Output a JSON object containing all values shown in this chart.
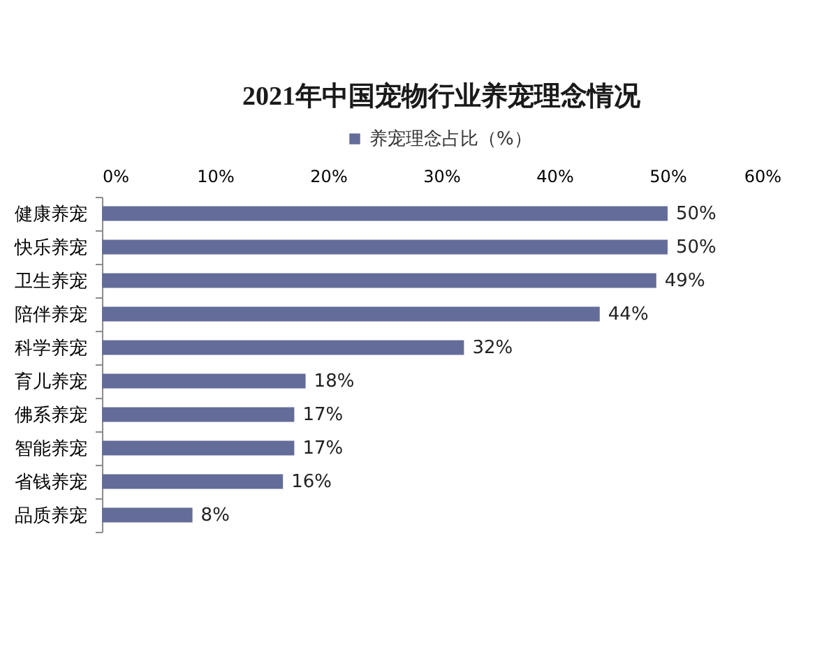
{
  "chart_data": {
    "type": "bar",
    "orientation": "horizontal",
    "title": "2021年中国宠物行业养宠理念情况",
    "categories": [
      "健康养宠",
      "快乐养宠",
      "卫生养宠",
      "陪伴养宠",
      "科学养宠",
      "育儿养宠",
      "佛系养宠",
      "智能养宠",
      "省钱养宠",
      "品质养宠"
    ],
    "series": [
      {
        "name": "养宠理念占比（%）",
        "color": "#646d99",
        "values": [
          50,
          50,
          49,
          44,
          32,
          18,
          17,
          17,
          16,
          8
        ],
        "value_labels": [
          "50%",
          "50%",
          "49%",
          "44%",
          "32%",
          "18%",
          "17%",
          "17%",
          "16%",
          "8%"
        ]
      }
    ],
    "xlim": [
      0,
      60
    ],
    "xticks": [
      {
        "value": 0,
        "label": "0%"
      },
      {
        "value": 10,
        "label": "10%"
      },
      {
        "value": 20,
        "label": "20%"
      },
      {
        "value": 30,
        "label": "30%"
      },
      {
        "value": 40,
        "label": "40%"
      },
      {
        "value": 50,
        "label": "50%"
      },
      {
        "value": 60,
        "label": "60%"
      }
    ],
    "legend": "top"
  }
}
